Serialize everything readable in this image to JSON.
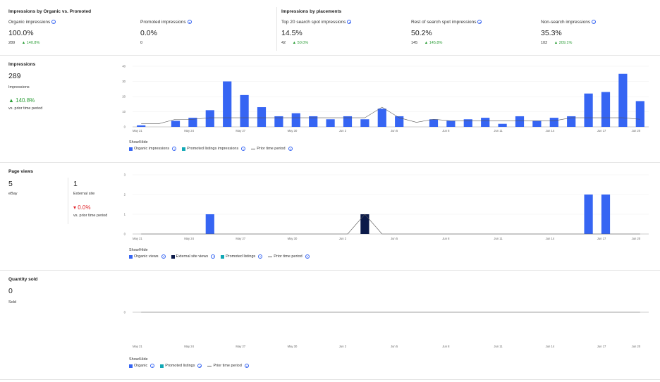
{
  "organic_vs_promoted": {
    "title": "Impressions by Organic vs. Promoted",
    "organic": {
      "label": "Organic impressions",
      "value": "100.0%",
      "count": "289",
      "change": "140.8%"
    },
    "promoted": {
      "label": "Promoted impressions",
      "value": "0.0%",
      "count": "0"
    }
  },
  "placements": {
    "title": "Impressions by placements",
    "top20": {
      "label": "Top 20 search spot impressions",
      "value": "14.5%",
      "count": "42",
      "change": "50.0%"
    },
    "rest": {
      "label": "Rest of search spot impressions",
      "value": "50.2%",
      "count": "145",
      "change": "145.8%"
    },
    "nonsearch": {
      "label": "Non-search impressions",
      "value": "35.3%",
      "count": "102",
      "change": "209.1%"
    }
  },
  "impressions": {
    "title": "Impressions",
    "value": "289",
    "sublabel": "Impressions",
    "change": "140.8%",
    "change_note": "vs. prior time period",
    "show_hide": "Show/Hide",
    "legend": {
      "organic": "Organic impressions",
      "promoted": "Promoted listings impressions",
      "prior": "Prior time period"
    }
  },
  "page_views": {
    "title": "Page views",
    "ebay_value": "5",
    "ebay_label": "eBay",
    "external_value": "1",
    "external_label": "External site",
    "change": "0.0%",
    "change_note": "vs. prior time period",
    "show_hide": "Show/Hide",
    "legend": {
      "organic": "Organic views",
      "external": "External site views",
      "promoted": "Promoted listings",
      "prior": "Prior time period"
    }
  },
  "quantity_sold": {
    "title": "Quantity sold",
    "value": "0",
    "sublabel": "Sold",
    "show_hide": "Show/Hide",
    "legend": {
      "organic": "Organic",
      "promoted": "Promoted listings",
      "prior": "Prior time period"
    }
  },
  "colors": {
    "organic": "#3665f3",
    "promoted": "#11a8b5",
    "external": "#0b1a4a",
    "prior": "#555555",
    "up": "#2a9d36",
    "down": "#e0252b"
  },
  "chart_data": [
    {
      "type": "bar",
      "title": "Impressions",
      "x_ticks": [
        "May 21",
        "May 24",
        "May 27",
        "May 30",
        "Jun 2",
        "Jun 5",
        "Jun 8",
        "Jun 11",
        "Jun 14",
        "Jun 17",
        "Jun 20"
      ],
      "y_ticks": [
        "0",
        "10",
        "20",
        "30",
        "40"
      ],
      "ylim": [
        0,
        40
      ],
      "series": [
        {
          "name": "Organic impressions",
          "values": [
            1,
            0,
            4,
            6,
            11,
            30,
            21,
            13,
            7,
            9,
            7,
            5,
            7,
            5,
            12,
            7,
            0,
            5,
            4,
            5,
            6,
            2,
            7,
            4,
            6,
            7,
            22,
            23,
            35,
            17
          ]
        },
        {
          "name": "Prior time period",
          "values": [
            2,
            2,
            5,
            5,
            6,
            6,
            6,
            6,
            6,
            6,
            6,
            6,
            6,
            6,
            13,
            6,
            3,
            5,
            4,
            4,
            4,
            4,
            4,
            4,
            4,
            6,
            6,
            6,
            6,
            5
          ]
        }
      ]
    },
    {
      "type": "bar",
      "title": "Page views",
      "x_ticks": [
        "May 21",
        "May 24",
        "May 27",
        "May 30",
        "Jun 2",
        "Jun 5",
        "Jun 8",
        "Jun 11",
        "Jun 14",
        "Jun 17",
        "Jun 20"
      ],
      "y_ticks": [
        "0",
        "1",
        "2",
        "3"
      ],
      "ylim": [
        0,
        3
      ],
      "series": [
        {
          "name": "Organic views",
          "values": [
            0,
            0,
            0,
            0,
            1,
            0,
            0,
            0,
            0,
            0,
            0,
            0,
            0,
            0,
            0,
            0,
            0,
            0,
            0,
            0,
            0,
            0,
            0,
            0,
            0,
            0,
            2,
            2,
            0,
            0
          ]
        },
        {
          "name": "External site views",
          "values": [
            0,
            0,
            0,
            0,
            0,
            0,
            0,
            0,
            0,
            0,
            0,
            0,
            0,
            1,
            0,
            0,
            0,
            0,
            0,
            0,
            0,
            0,
            0,
            0,
            0,
            0,
            0,
            0,
            0,
            0
          ]
        },
        {
          "name": "Prior time period",
          "values": [
            0,
            0,
            0,
            0,
            0,
            0,
            0,
            0,
            0,
            0,
            0,
            0,
            0,
            1,
            0,
            0,
            0,
            0,
            0,
            0,
            0,
            0,
            0,
            0,
            0,
            0,
            0,
            0,
            0,
            0
          ]
        }
      ]
    },
    {
      "type": "line",
      "title": "Quantity sold",
      "x_ticks": [
        "May 21",
        "May 24",
        "May 27",
        "May 30",
        "Jun 2",
        "Jun 5",
        "Jun 8",
        "Jun 11",
        "Jun 14",
        "Jun 17",
        "Jun 20"
      ],
      "y_ticks": [
        "0"
      ],
      "series": [
        {
          "name": "Organic",
          "values": [
            0,
            0,
            0,
            0,
            0,
            0,
            0,
            0,
            0,
            0,
            0,
            0,
            0,
            0,
            0,
            0,
            0,
            0,
            0,
            0,
            0,
            0,
            0,
            0,
            0,
            0,
            0,
            0,
            0,
            0
          ]
        }
      ]
    }
  ]
}
